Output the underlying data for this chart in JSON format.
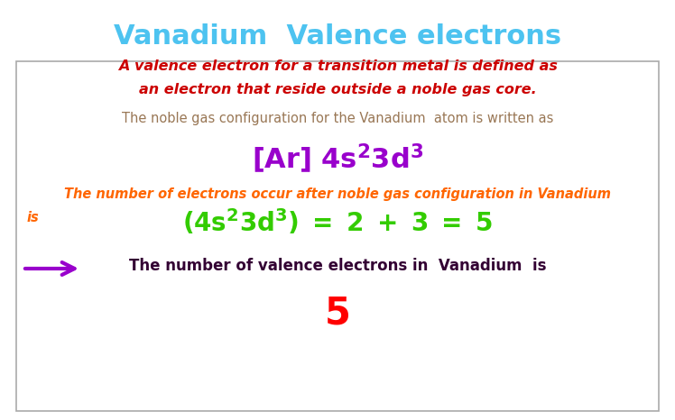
{
  "title": "Vanadium  Valence electrons",
  "title_color": "#4DC3F0",
  "title_fontsize": 22,
  "bg_color": "#FFFFFF",
  "line1_text": "A valence electron for a transition metal is defined as",
  "line2_text": "an electron that reside outside a noble gas core.",
  "line12_color": "#CC0000",
  "line3_text": "The noble gas configuration for the Vanadium  atom is written as",
  "line3_color": "#997755",
  "config_color": "#9900CC",
  "line5_text": "The number of electrons occur after noble gas configuration in Vanadium",
  "line6_text": "is",
  "line56_color": "#FF6600",
  "equation_color": "#33CC00",
  "arrow_color": "#9900CC",
  "last_line_text": "The number of valence electrons in  Vanadium  is",
  "last_line_color": "#330033",
  "final_number": "5",
  "final_color": "#FF0000"
}
